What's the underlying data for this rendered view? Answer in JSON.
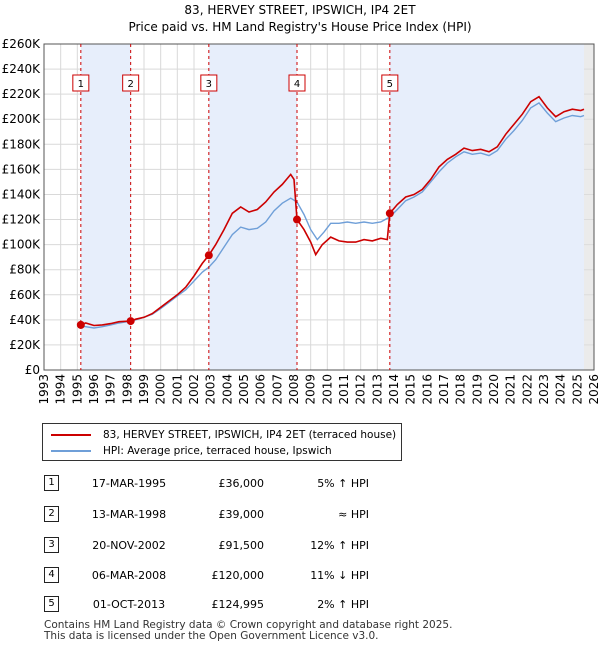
{
  "chart_data": {
    "type": "line",
    "title": "83, HERVEY STREET, IPSWICH, IP4 2ET",
    "subtitle": "Price paid vs. HM Land Registry's House Price Index (HPI)",
    "xlabel": "",
    "ylabel": "",
    "xlim": [
      1993,
      2026
    ],
    "ylim": [
      0,
      260000
    ],
    "y_ticks": [
      {
        "value": 0,
        "label": "£0"
      },
      {
        "value": 20000,
        "label": "£20K"
      },
      {
        "value": 40000,
        "label": "£40K"
      },
      {
        "value": 60000,
        "label": "£60K"
      },
      {
        "value": 80000,
        "label": "£80K"
      },
      {
        "value": 100000,
        "label": "£100K"
      },
      {
        "value": 120000,
        "label": "£120K"
      },
      {
        "value": 140000,
        "label": "£140K"
      },
      {
        "value": 160000,
        "label": "£160K"
      },
      {
        "value": 180000,
        "label": "£180K"
      },
      {
        "value": 200000,
        "label": "£200K"
      },
      {
        "value": 220000,
        "label": "£220K"
      },
      {
        "value": 240000,
        "label": "£240K"
      },
      {
        "value": 260000,
        "label": "£260K"
      }
    ],
    "x_ticks": [
      "1993",
      "1994",
      "1995",
      "1996",
      "1997",
      "1998",
      "1999",
      "2000",
      "2001",
      "2002",
      "2003",
      "2004",
      "2005",
      "2006",
      "2007",
      "2008",
      "2009",
      "2010",
      "2011",
      "2012",
      "2013",
      "2014",
      "2015",
      "2016",
      "2017",
      "2018",
      "2019",
      "2020",
      "2021",
      "2022",
      "2023",
      "2024",
      "2025",
      "2026"
    ],
    "grid": true,
    "series": [
      {
        "name": "83, HERVEY STREET, IPSWICH, IP4 2ET (terraced house)",
        "color": "#cc0000",
        "points": [
          [
            1995.21,
            36000
          ],
          [
            1995.5,
            37500
          ],
          [
            1996,
            35500
          ],
          [
            1996.5,
            36000
          ],
          [
            1997,
            37000
          ],
          [
            1997.5,
            38500
          ],
          [
            1998.2,
            39000
          ],
          [
            1998.5,
            40500
          ],
          [
            1999,
            42000
          ],
          [
            1999.5,
            45000
          ],
          [
            2000,
            50000
          ],
          [
            2000.5,
            55000
          ],
          [
            2001,
            60000
          ],
          [
            2001.5,
            66000
          ],
          [
            2002,
            75000
          ],
          [
            2002.5,
            85000
          ],
          [
            2002.89,
            91500
          ],
          [
            2003.3,
            100000
          ],
          [
            2003.8,
            112000
          ],
          [
            2004.3,
            125000
          ],
          [
            2004.8,
            130000
          ],
          [
            2005.3,
            126000
          ],
          [
            2005.8,
            128000
          ],
          [
            2006.3,
            134000
          ],
          [
            2006.8,
            142000
          ],
          [
            2007.3,
            148000
          ],
          [
            2007.8,
            156000
          ],
          [
            2008.0,
            152000
          ],
          [
            2008.18,
            120000
          ],
          [
            2008.6,
            112000
          ],
          [
            2009.0,
            102000
          ],
          [
            2009.3,
            92000
          ],
          [
            2009.7,
            100000
          ],
          [
            2010.2,
            106000
          ],
          [
            2010.7,
            103000
          ],
          [
            2011.2,
            102000
          ],
          [
            2011.7,
            102000
          ],
          [
            2012.2,
            104000
          ],
          [
            2012.7,
            103000
          ],
          [
            2013.2,
            105000
          ],
          [
            2013.6,
            104000
          ],
          [
            2013.75,
            124995
          ],
          [
            2014.2,
            132000
          ],
          [
            2014.7,
            138000
          ],
          [
            2015.2,
            140000
          ],
          [
            2015.7,
            144000
          ],
          [
            2016.2,
            152000
          ],
          [
            2016.7,
            162000
          ],
          [
            2017.2,
            168000
          ],
          [
            2017.7,
            172000
          ],
          [
            2018.2,
            177000
          ],
          [
            2018.7,
            175000
          ],
          [
            2019.2,
            176000
          ],
          [
            2019.7,
            174000
          ],
          [
            2020.2,
            178000
          ],
          [
            2020.7,
            188000
          ],
          [
            2021.2,
            196000
          ],
          [
            2021.7,
            204000
          ],
          [
            2022.2,
            214000
          ],
          [
            2022.7,
            218000
          ],
          [
            2023.2,
            209000
          ],
          [
            2023.7,
            202000
          ],
          [
            2024.2,
            206000
          ],
          [
            2024.7,
            208000
          ],
          [
            2025.2,
            207000
          ],
          [
            2025.4,
            208000
          ]
        ]
      },
      {
        "name": "HPI: Average price, terraced house, Ipswich",
        "color": "#6f9fd8",
        "points": [
          [
            1995.0,
            35000
          ],
          [
            1995.5,
            34500
          ],
          [
            1996,
            33500
          ],
          [
            1996.5,
            34500
          ],
          [
            1997,
            36000
          ],
          [
            1997.5,
            37500
          ],
          [
            1998.2,
            39000
          ],
          [
            1998.5,
            40000
          ],
          [
            1999,
            42000
          ],
          [
            1999.5,
            44500
          ],
          [
            2000,
            49000
          ],
          [
            2000.5,
            54000
          ],
          [
            2001,
            59000
          ],
          [
            2001.5,
            64000
          ],
          [
            2002,
            71000
          ],
          [
            2002.5,
            78000
          ],
          [
            2002.89,
            82000
          ],
          [
            2003.3,
            88000
          ],
          [
            2003.8,
            98000
          ],
          [
            2004.3,
            108000
          ],
          [
            2004.8,
            114000
          ],
          [
            2005.3,
            112000
          ],
          [
            2005.8,
            113000
          ],
          [
            2006.3,
            118000
          ],
          [
            2006.8,
            127000
          ],
          [
            2007.3,
            133000
          ],
          [
            2007.8,
            137000
          ],
          [
            2008.18,
            134000
          ],
          [
            2008.6,
            124000
          ],
          [
            2009.0,
            112000
          ],
          [
            2009.4,
            104000
          ],
          [
            2009.8,
            110000
          ],
          [
            2010.2,
            117000
          ],
          [
            2010.7,
            117000
          ],
          [
            2011.2,
            118000
          ],
          [
            2011.7,
            117000
          ],
          [
            2012.2,
            118000
          ],
          [
            2012.7,
            117000
          ],
          [
            2013.2,
            118000
          ],
          [
            2013.75,
            122000
          ],
          [
            2014.2,
            128000
          ],
          [
            2014.7,
            135000
          ],
          [
            2015.2,
            138000
          ],
          [
            2015.7,
            142000
          ],
          [
            2016.2,
            150000
          ],
          [
            2016.7,
            158000
          ],
          [
            2017.2,
            165000
          ],
          [
            2017.7,
            170000
          ],
          [
            2018.2,
            174000
          ],
          [
            2018.7,
            172000
          ],
          [
            2019.2,
            173000
          ],
          [
            2019.7,
            171000
          ],
          [
            2020.2,
            175000
          ],
          [
            2020.7,
            184000
          ],
          [
            2021.2,
            191000
          ],
          [
            2021.7,
            199000
          ],
          [
            2022.2,
            209000
          ],
          [
            2022.7,
            213000
          ],
          [
            2023.2,
            205000
          ],
          [
            2023.7,
            198000
          ],
          [
            2024.2,
            201000
          ],
          [
            2024.7,
            203000
          ],
          [
            2025.2,
            202000
          ],
          [
            2025.4,
            203000
          ]
        ]
      }
    ],
    "sales": [
      {
        "n": "1",
        "x": 1995.21,
        "price": 36000
      },
      {
        "n": "2",
        "x": 1998.2,
        "price": 39000
      },
      {
        "n": "3",
        "x": 2002.89,
        "price": 91500
      },
      {
        "n": "4",
        "x": 2008.18,
        "price": 120000
      },
      {
        "n": "5",
        "x": 2013.75,
        "price": 124995
      }
    ],
    "shaded_ranges": [
      [
        1995.21,
        1998.2
      ],
      [
        2002.89,
        2008.18
      ],
      [
        2013.75,
        2025.4
      ]
    ],
    "forecast_start": 2025.4
  },
  "legend": {
    "property": "83, HERVEY STREET, IPSWICH, IP4 2ET (terraced house)",
    "hpi": "HPI: Average price, terraced house, Ipswich"
  },
  "transactions": [
    {
      "n": "1",
      "date": "17-MAR-1995",
      "price": "£36,000",
      "hpi": "5% ↑ HPI"
    },
    {
      "n": "2",
      "date": "13-MAR-1998",
      "price": "£39,000",
      "hpi": "≈ HPI"
    },
    {
      "n": "3",
      "date": "20-NOV-2002",
      "price": "£91,500",
      "hpi": "12% ↑ HPI"
    },
    {
      "n": "4",
      "date": "06-MAR-2008",
      "price": "£120,000",
      "hpi": "11% ↓ HPI"
    },
    {
      "n": "5",
      "date": "01-OCT-2013",
      "price": "£124,995",
      "hpi": "2% ↑ HPI"
    }
  ],
  "footer": {
    "line1": "Contains HM Land Registry data © Crown copyright and database right 2025.",
    "line2": "This data is licensed under the Open Government Licence v3.0."
  }
}
